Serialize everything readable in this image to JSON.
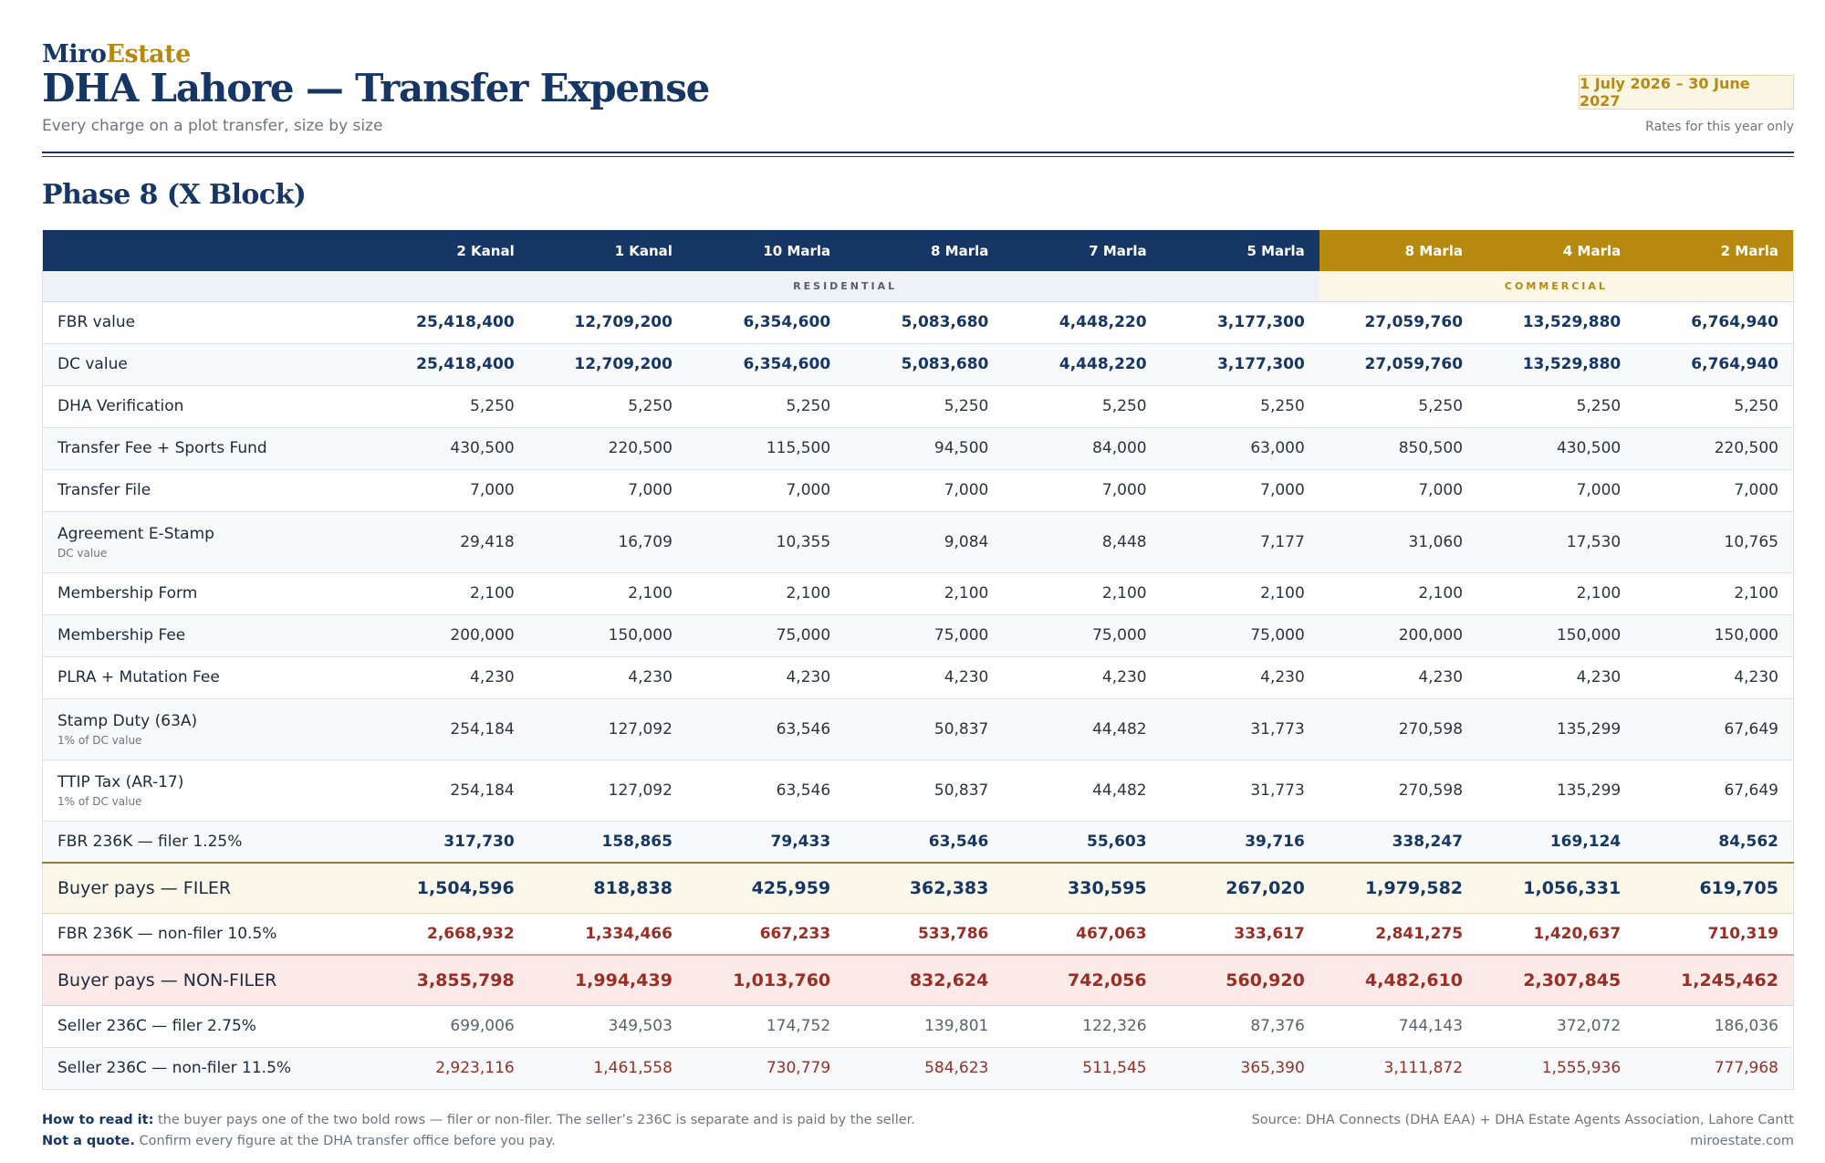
{
  "brand": {
    "part1": "Miro",
    "part2": "Estate"
  },
  "title": "DHA Lahore — Transfer Expense",
  "subtitle": "Every charge on a plot transfer, size by size",
  "period": "1 July 2026 – 30 June 2027",
  "period_note": "Rates for this year only",
  "section_title": "Phase 8 (X Block)",
  "columns": [
    "2 Kanal",
    "1 Kanal",
    "10 Marla",
    "8 Marla",
    "7 Marla",
    "5 Marla",
    "8 Marla",
    "4 Marla",
    "2 Marla"
  ],
  "groups": {
    "residential": "RESIDENTIAL",
    "commercial": "COMMERCIAL"
  },
  "rows": [
    {
      "label": "FBR value",
      "note": "",
      "values": [
        "25,418,400",
        "12,709,200",
        "6,354,600",
        "5,083,680",
        "4,448,220",
        "3,177,300",
        "27,059,760",
        "13,529,880",
        "6,764,940"
      ]
    },
    {
      "label": "DC value",
      "note": "",
      "values": [
        "25,418,400",
        "12,709,200",
        "6,354,600",
        "5,083,680",
        "4,448,220",
        "3,177,300",
        "27,059,760",
        "13,529,880",
        "6,764,940"
      ]
    },
    {
      "label": "DHA Verification",
      "note": "",
      "values": [
        "5,250",
        "5,250",
        "5,250",
        "5,250",
        "5,250",
        "5,250",
        "5,250",
        "5,250",
        "5,250"
      ]
    },
    {
      "label": "Transfer Fee + Sports Fund",
      "note": "",
      "values": [
        "430,500",
        "220,500",
        "115,500",
        "94,500",
        "84,000",
        "63,000",
        "850,500",
        "430,500",
        "220,500"
      ]
    },
    {
      "label": "Transfer File",
      "note": "",
      "values": [
        "7,000",
        "7,000",
        "7,000",
        "7,000",
        "7,000",
        "7,000",
        "7,000",
        "7,000",
        "7,000"
      ]
    },
    {
      "label": "Agreement E-Stamp",
      "note": "DC value",
      "values": [
        "29,418",
        "16,709",
        "10,355",
        "9,084",
        "8,448",
        "7,177",
        "31,060",
        "17,530",
        "10,765"
      ]
    },
    {
      "label": "Membership Form",
      "note": "",
      "values": [
        "2,100",
        "2,100",
        "2,100",
        "2,100",
        "2,100",
        "2,100",
        "2,100",
        "2,100",
        "2,100"
      ]
    },
    {
      "label": "Membership Fee",
      "note": "",
      "values": [
        "200,000",
        "150,000",
        "75,000",
        "75,000",
        "75,000",
        "75,000",
        "200,000",
        "150,000",
        "150,000"
      ]
    },
    {
      "label": "PLRA + Mutation Fee",
      "note": "",
      "values": [
        "4,230",
        "4,230",
        "4,230",
        "4,230",
        "4,230",
        "4,230",
        "4,230",
        "4,230",
        "4,230"
      ]
    },
    {
      "label": "Stamp Duty (63A)",
      "note": "1% of DC value",
      "values": [
        "254,184",
        "127,092",
        "63,546",
        "50,837",
        "44,482",
        "31,773",
        "270,598",
        "135,299",
        "67,649"
      ]
    },
    {
      "label": "TTIP Tax (AR-17)",
      "note": "1% of DC value",
      "values": [
        "254,184",
        "127,092",
        "63,546",
        "50,837",
        "44,482",
        "31,773",
        "270,598",
        "135,299",
        "67,649"
      ]
    },
    {
      "label": "FBR 236K — filer 1.25%",
      "note": "",
      "values": [
        "317,730",
        "158,865",
        "79,433",
        "63,546",
        "55,603",
        "39,716",
        "338,247",
        "169,124",
        "84,562"
      ]
    },
    {
      "label": "Buyer pays — FILER",
      "note": "",
      "values": [
        "1,504,596",
        "818,838",
        "425,959",
        "362,383",
        "330,595",
        "267,020",
        "1,979,582",
        "1,056,331",
        "619,705"
      ]
    },
    {
      "label": "FBR 236K — non-filer 10.5%",
      "note": "",
      "values": [
        "2,668,932",
        "1,334,466",
        "667,233",
        "533,786",
        "467,063",
        "333,617",
        "2,841,275",
        "1,420,637",
        "710,319"
      ]
    },
    {
      "label": "Buyer pays — NON-FILER",
      "note": "",
      "values": [
        "3,855,798",
        "1,994,439",
        "1,013,760",
        "832,624",
        "742,056",
        "560,920",
        "4,482,610",
        "2,307,845",
        "1,245,462"
      ]
    },
    {
      "label": "Seller 236C — filer 2.75%",
      "note": "",
      "values": [
        "699,006",
        "349,503",
        "174,752",
        "139,801",
        "122,326",
        "87,376",
        "744,143",
        "372,072",
        "186,036"
      ]
    },
    {
      "label": "Seller 236C — non-filer 11.5%",
      "note": "",
      "values": [
        "2,923,116",
        "1,461,558",
        "730,779",
        "584,623",
        "511,545",
        "365,390",
        "3,111,872",
        "1,555,936",
        "777,968"
      ]
    }
  ],
  "footer": {
    "how_label": "How to read it:",
    "how_text": " the buyer pays one of the two bold rows — filer or non-filer. The seller’s 236C is separate and is paid by the seller.",
    "quote_label": "Not a quote.",
    "quote_text": " Confirm every figure at the DHA transfer office before you pay.",
    "source": "Source: DHA Connects (DHA EAA) + DHA Estate Agents Association, Lahore Cantt",
    "site": "miroestate.com"
  }
}
